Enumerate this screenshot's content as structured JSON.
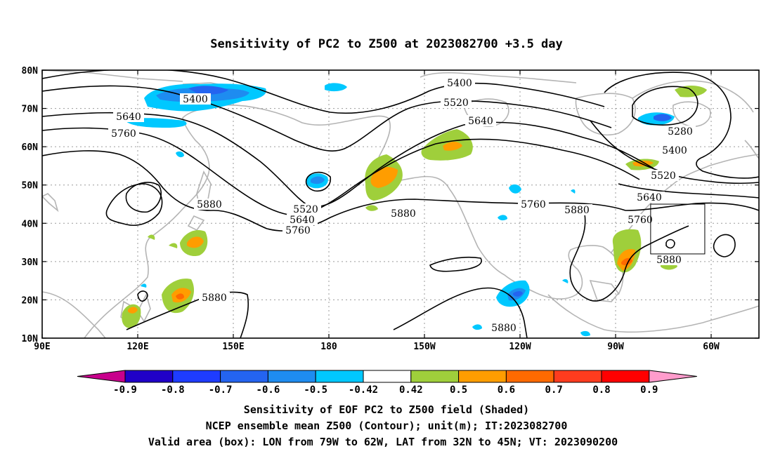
{
  "title": "Sensitivity of PC2 to Z500 at 2023082700 +3.5 day",
  "map": {
    "lat_ticks": [
      "80N",
      "70N",
      "60N",
      "50N",
      "40N",
      "30N",
      "20N",
      "10N"
    ],
    "lon_ticks": [
      "90E",
      "120E",
      "150E",
      "180",
      "150W",
      "120W",
      "90W",
      "60W"
    ],
    "lat_range": [
      10,
      80
    ],
    "lon_range": [
      90,
      315
    ],
    "gridlines": true,
    "valid_box": {
      "lon": [
        -79,
        -62
      ],
      "lat": [
        32,
        45
      ]
    }
  },
  "contour_labels": {
    "c1": "5400",
    "c2": "5640",
    "c3": "5760",
    "c4": "5520",
    "c5": "5640",
    "c6": "5760",
    "c7": "5400",
    "c8": "5520",
    "c9": "5640",
    "c10": "5880",
    "c11": "5760",
    "c12": "5880",
    "c13": "5880",
    "c14": "5280",
    "c15": "5400",
    "c16": "5520",
    "c17": "5640",
    "c18": "5760",
    "c19": "5880",
    "c20": "5880",
    "c21": "5880"
  },
  "colorbar": {
    "labels": [
      "-0.9",
      "-0.8",
      "-0.7",
      "-0.6",
      "-0.5",
      "-0.42",
      "0.42",
      "0.5",
      "0.6",
      "0.7",
      "0.8",
      "0.9"
    ],
    "colors": [
      "#2000c8",
      "#1e3cff",
      "#2464f0",
      "#1e8cf0",
      "#00c8ff",
      "#ffffff",
      "#9fcf3b",
      "#ff9d00",
      "#ff6a00",
      "#ff3c1e",
      "#ff0000"
    ],
    "low_extend_color": "#c8008c",
    "high_extend_color": "#ff9ccc"
  },
  "caption": {
    "line1": "Sensitivity of EOF PC2 to Z500 field (Shaded)",
    "line2": "NCEP ensemble mean Z500 (Contour); unit(m); IT:2023082700",
    "line3": "Valid area (box): LON from 79W to 62W, LAT from 32N to 45N; VT: 2023090200"
  },
  "colors": {
    "coast": "#b4b4b4",
    "contour": "#000000",
    "grid": "#9a9a9a"
  }
}
